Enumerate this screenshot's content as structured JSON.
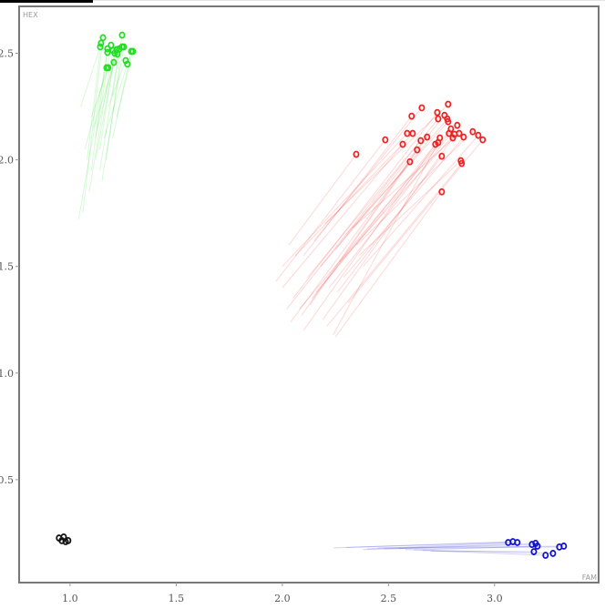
{
  "chart_data": {
    "type": "scatter",
    "xlabel": "FAM",
    "ylabel": "HEX",
    "xlim": [
      0.76,
      3.49
    ],
    "ylim": [
      0.017,
      2.72
    ],
    "xticks": [
      "1.0",
      "1.5",
      "2.0",
      "2.5",
      "3.0"
    ],
    "yticks": [
      "0.5",
      "1.0",
      "1.5",
      "2.0",
      "2.5"
    ],
    "grid": false,
    "point_style": "hollow circle with trail line from earlier cycle position",
    "series": [
      {
        "color": "#22dd22",
        "points": [
          [
            1.155,
            2.573,
            1.06,
            1.75
          ],
          [
            1.146,
            2.547,
            1.08,
            2.0
          ],
          [
            1.142,
            2.53,
            1.05,
            2.25
          ],
          [
            1.176,
            2.521,
            1.1,
            1.95
          ],
          [
            1.193,
            2.538,
            1.12,
            2.1
          ],
          [
            1.202,
            2.513,
            1.09,
            1.85
          ],
          [
            1.176,
            2.504,
            1.04,
            1.72
          ],
          [
            1.21,
            2.5,
            1.14,
            2.05
          ],
          [
            1.219,
            2.517,
            1.13,
            2.15
          ],
          [
            1.245,
            2.53,
            1.17,
            2.0
          ],
          [
            1.245,
            2.585,
            1.2,
            2.3
          ],
          [
            1.253,
            2.53,
            1.15,
            1.9
          ],
          [
            1.288,
            2.509,
            1.2,
            2.1
          ],
          [
            1.296,
            2.509,
            1.22,
            2.2
          ],
          [
            1.172,
            2.432,
            1.07,
            2.05
          ],
          [
            1.18,
            2.432,
            1.1,
            2.2
          ],
          [
            1.206,
            2.457,
            1.12,
            2.0
          ],
          [
            1.262,
            2.466,
            1.18,
            2.25
          ],
          [
            1.27,
            2.449,
            1.16,
            2.1
          ],
          [
            1.232,
            2.521,
            1.14,
            1.95
          ],
          [
            1.223,
            2.496,
            1.11,
            2.15
          ]
        ]
      },
      {
        "color": "#ee2222",
        "points": [
          [
            2.348,
            2.026,
            2.03,
            1.6
          ],
          [
            2.485,
            2.094,
            1.97,
            1.43
          ],
          [
            2.609,
            2.205,
            2.1,
            1.55
          ],
          [
            2.657,
            2.244,
            2.15,
            1.62
          ],
          [
            2.781,
            2.261,
            2.2,
            1.7
          ],
          [
            2.73,
            2.222,
            2.05,
            1.35
          ],
          [
            2.734,
            2.192,
            2.12,
            1.45
          ],
          [
            2.764,
            2.209,
            2.25,
            1.58
          ],
          [
            2.777,
            2.192,
            2.18,
            1.5
          ],
          [
            2.781,
            2.179,
            2.3,
            1.65
          ],
          [
            2.824,
            2.162,
            2.22,
            1.4
          ],
          [
            2.794,
            2.145,
            2.08,
            1.3
          ],
          [
            2.588,
            2.124,
            2.0,
            1.5
          ],
          [
            2.614,
            2.124,
            2.06,
            1.55
          ],
          [
            2.785,
            2.124,
            2.16,
            1.38
          ],
          [
            2.811,
            2.12,
            2.27,
            1.52
          ],
          [
            2.833,
            2.124,
            2.33,
            1.68
          ],
          [
            2.803,
            2.103,
            2.19,
            1.25
          ],
          [
            2.854,
            2.107,
            2.29,
            1.45
          ],
          [
            2.897,
            2.132,
            2.35,
            1.6
          ],
          [
            2.923,
            2.115,
            2.38,
            1.5
          ],
          [
            2.944,
            2.094,
            2.31,
            1.33
          ],
          [
            2.682,
            2.107,
            2.04,
            1.24
          ],
          [
            2.652,
            2.09,
            2.02,
            1.3
          ],
          [
            2.742,
            2.103,
            2.1,
            1.2
          ],
          [
            2.734,
            2.081,
            2.24,
            1.18
          ],
          [
            2.721,
            2.073,
            2.14,
            1.35
          ],
          [
            2.567,
            2.073,
            2.0,
            1.4
          ],
          [
            2.635,
            2.047,
            2.09,
            1.27
          ],
          [
            2.751,
            2.017,
            2.26,
            1.38
          ],
          [
            2.601,
            1.991,
            2.13,
            1.32
          ],
          [
            2.841,
            1.996,
            2.36,
            1.55
          ],
          [
            2.845,
            1.983,
            2.21,
            1.22
          ],
          [
            2.751,
            1.85,
            2.25,
            1.17
          ]
        ]
      },
      {
        "color": "#1111cc",
        "points": [
          [
            3.064,
            0.205,
            2.24,
            0.18
          ],
          [
            3.086,
            0.209,
            2.3,
            0.182
          ],
          [
            3.107,
            0.205,
            2.4,
            0.175
          ],
          [
            3.176,
            0.196,
            2.38,
            0.172
          ],
          [
            3.193,
            0.201,
            2.55,
            0.178
          ],
          [
            3.202,
            0.188,
            2.62,
            0.17
          ],
          [
            3.185,
            0.162,
            2.7,
            0.165
          ],
          [
            3.24,
            0.145,
            2.66,
            0.168
          ],
          [
            3.275,
            0.154,
            2.58,
            0.172
          ],
          [
            3.305,
            0.184,
            2.48,
            0.176
          ],
          [
            3.326,
            0.188,
            2.45,
            0.18
          ]
        ]
      },
      {
        "color": "#111111",
        "points": [
          [
            0.948,
            0.226,
            0.948,
            0.226
          ],
          [
            0.97,
            0.231,
            0.97,
            0.231
          ],
          [
            0.961,
            0.214,
            0.961,
            0.214
          ],
          [
            0.979,
            0.209,
            0.979,
            0.209
          ],
          [
            0.991,
            0.214,
            0.991,
            0.214
          ]
        ]
      }
    ]
  }
}
